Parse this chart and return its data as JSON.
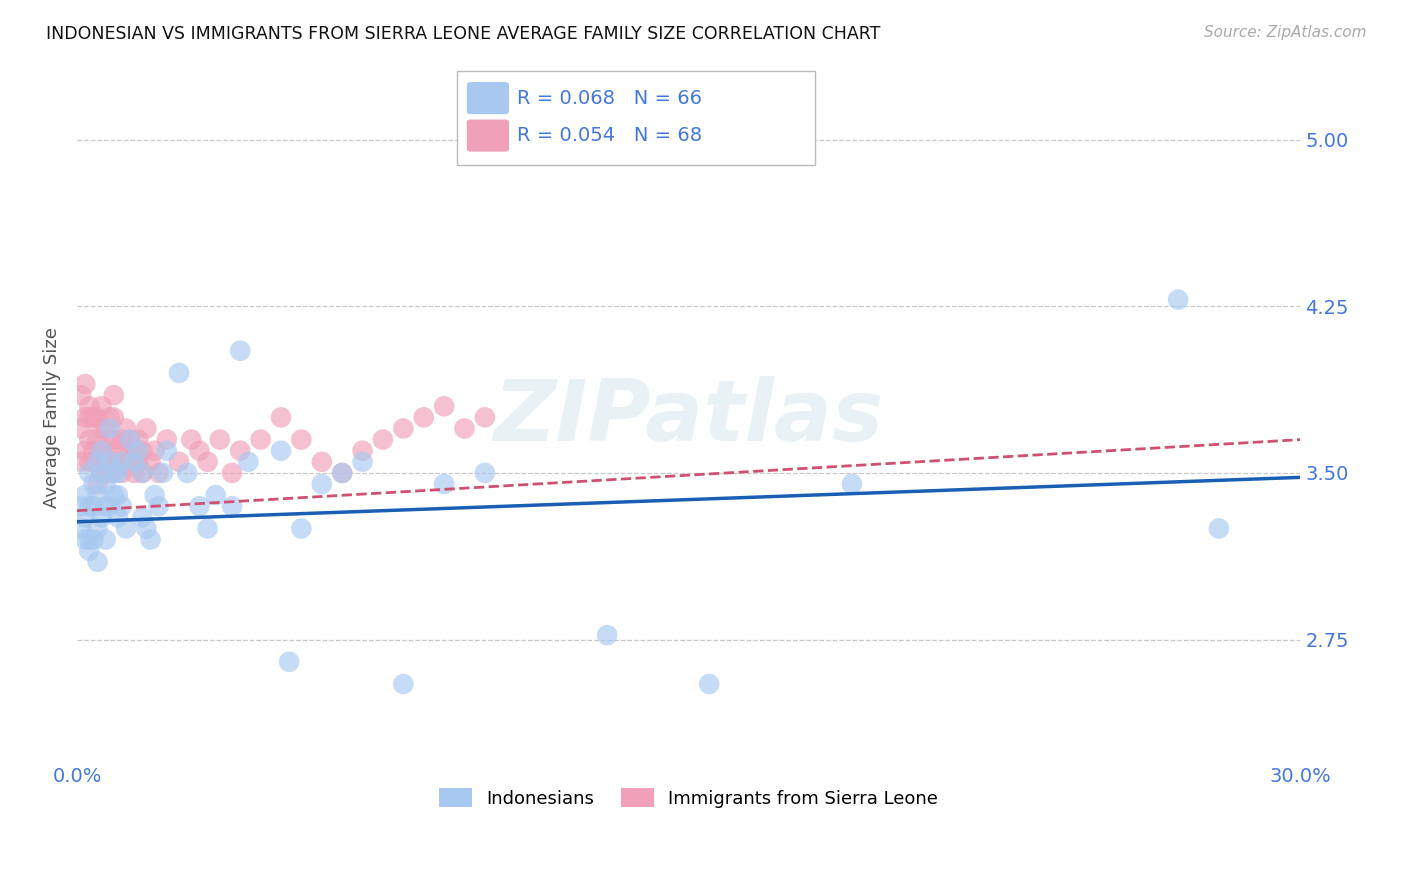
{
  "title": "INDONESIAN VS IMMIGRANTS FROM SIERRA LEONE AVERAGE FAMILY SIZE CORRELATION CHART",
  "source": "Source: ZipAtlas.com",
  "ylabel": "Average Family Size",
  "xlim": [
    0.0,
    0.3
  ],
  "ylim": [
    2.2,
    5.3
  ],
  "yticks": [
    2.75,
    3.5,
    4.25,
    5.0
  ],
  "xticks": [
    0.0,
    0.05,
    0.1,
    0.15,
    0.2,
    0.25,
    0.3
  ],
  "xtick_labels": [
    "0.0%",
    "",
    "",
    "",
    "",
    "",
    "30.0%"
  ],
  "background_color": "#ffffff",
  "grid_color": "#c8c8c8",
  "right_axis_color": "#4477dd",
  "source_color": "#aaaaaa",
  "watermark": "ZIPatlas",
  "indonesian_color": "#a8c8f0",
  "sierra_leone_color": "#f0a0b8",
  "indonesian_line_color": "#1a5fb4",
  "sierra_leone_line_color": "#d05070",
  "legend_label1": "R = 0.068   N = 66",
  "legend_label2": "R = 0.054   N = 68",
  "indonesian_x": [
    0.001,
    0.001,
    0.002,
    0.002,
    0.002,
    0.003,
    0.003,
    0.003,
    0.003,
    0.004,
    0.004,
    0.004,
    0.005,
    0.005,
    0.005,
    0.005,
    0.006,
    0.006,
    0.006,
    0.007,
    0.007,
    0.007,
    0.008,
    0.008,
    0.008,
    0.009,
    0.009,
    0.01,
    0.01,
    0.01,
    0.011,
    0.011,
    0.012,
    0.013,
    0.014,
    0.015,
    0.016,
    0.016,
    0.017,
    0.018,
    0.019,
    0.02,
    0.021,
    0.022,
    0.025,
    0.027,
    0.03,
    0.032,
    0.034,
    0.038,
    0.04,
    0.042,
    0.05,
    0.052,
    0.055,
    0.06,
    0.065,
    0.07,
    0.08,
    0.09,
    0.1,
    0.13,
    0.155,
    0.19,
    0.27,
    0.28
  ],
  "indonesian_y": [
    3.35,
    3.25,
    3.4,
    3.3,
    3.2,
    3.5,
    3.35,
    3.2,
    3.15,
    3.45,
    3.35,
    3.2,
    3.55,
    3.4,
    3.25,
    3.1,
    3.5,
    3.6,
    3.3,
    3.45,
    3.35,
    3.2,
    3.7,
    3.55,
    3.35,
    3.5,
    3.4,
    3.5,
    3.4,
    3.3,
    3.55,
    3.35,
    3.25,
    3.65,
    3.55,
    3.6,
    3.5,
    3.3,
    3.25,
    3.2,
    3.4,
    3.35,
    3.5,
    3.6,
    3.95,
    3.5,
    3.35,
    3.25,
    3.4,
    3.35,
    4.05,
    3.55,
    3.6,
    2.65,
    3.25,
    3.45,
    3.5,
    3.55,
    2.55,
    3.45,
    3.5,
    2.77,
    2.55,
    3.45,
    4.28,
    3.25
  ],
  "sierra_leone_x": [
    0.001,
    0.001,
    0.001,
    0.002,
    0.002,
    0.002,
    0.003,
    0.003,
    0.003,
    0.003,
    0.004,
    0.004,
    0.004,
    0.005,
    0.005,
    0.005,
    0.005,
    0.006,
    0.006,
    0.006,
    0.006,
    0.007,
    0.007,
    0.007,
    0.008,
    0.008,
    0.008,
    0.009,
    0.009,
    0.009,
    0.01,
    0.01,
    0.011,
    0.011,
    0.012,
    0.012,
    0.013,
    0.013,
    0.014,
    0.014,
    0.015,
    0.015,
    0.016,
    0.016,
    0.017,
    0.018,
    0.019,
    0.02,
    0.022,
    0.025,
    0.028,
    0.03,
    0.032,
    0.035,
    0.038,
    0.04,
    0.045,
    0.05,
    0.055,
    0.06,
    0.065,
    0.07,
    0.075,
    0.08,
    0.085,
    0.09,
    0.095,
    0.1
  ],
  "sierra_leone_y": [
    3.55,
    3.7,
    3.85,
    3.75,
    3.9,
    3.6,
    3.75,
    3.65,
    3.55,
    3.8,
    3.6,
    3.75,
    3.55,
    3.65,
    3.75,
    3.55,
    3.45,
    3.7,
    3.8,
    3.6,
    3.5,
    3.6,
    3.7,
    3.55,
    3.5,
    3.65,
    3.75,
    3.65,
    3.75,
    3.85,
    3.6,
    3.55,
    3.5,
    3.65,
    3.6,
    3.7,
    3.55,
    3.65,
    3.5,
    3.6,
    3.55,
    3.65,
    3.5,
    3.6,
    3.7,
    3.55,
    3.6,
    3.5,
    3.65,
    3.55,
    3.65,
    3.6,
    3.55,
    3.65,
    3.5,
    3.6,
    3.65,
    3.75,
    3.65,
    3.55,
    3.5,
    3.6,
    3.65,
    3.7,
    3.75,
    3.8,
    3.7,
    3.75
  ],
  "indo_line_x0": 0.0,
  "indo_line_x1": 0.3,
  "indo_line_y0": 3.28,
  "indo_line_y1": 3.48,
  "sl_line_x0": 0.0,
  "sl_line_x1": 0.3,
  "sl_line_y0": 3.33,
  "sl_line_y1": 3.65
}
